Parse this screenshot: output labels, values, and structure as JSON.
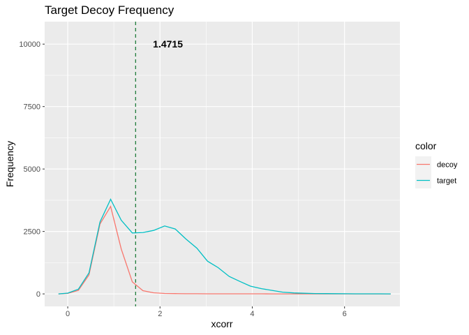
{
  "chart_data": {
    "type": "line",
    "title": "Target Decoy Frequency",
    "xlabel": "xcorr",
    "ylabel": "Frequency",
    "xlim": [
      -0.5,
      7.2
    ],
    "ylim": [
      -500,
      10900
    ],
    "x_ticks": [
      0,
      2,
      4,
      6
    ],
    "x_tick_labels": [
      "0",
      "2",
      "4",
      "6"
    ],
    "y_ticks": [
      0,
      2500,
      5000,
      7500,
      10000
    ],
    "y_tick_labels": [
      "0",
      "2500",
      "5000",
      "7500",
      "10000"
    ],
    "grid": true,
    "legend": {
      "title": "color",
      "position": "right"
    },
    "threshold": {
      "x": 1.4715,
      "label": "1.4715",
      "color": "#1e7b3a",
      "style": "dashed"
    },
    "series": [
      {
        "name": "decoy",
        "color": "#F8766D",
        "x": [
          -0.2,
          0.0,
          0.23,
          0.46,
          0.7,
          0.93,
          1.16,
          1.4,
          1.63,
          1.86,
          2.1,
          2.33,
          2.56,
          2.8,
          3.03,
          3.26,
          3.5,
          3.73,
          3.96,
          4.2,
          4.43,
          4.66,
          4.9,
          5.13,
          5.36,
          5.6,
          5.83,
          6.06,
          6.3,
          6.53,
          6.76,
          7.0
        ],
        "y": [
          0,
          20,
          140,
          760,
          2800,
          3500,
          1800,
          480,
          130,
          45,
          18,
          10,
          7,
          5,
          4,
          3,
          3,
          2,
          2,
          2,
          1,
          1,
          1,
          1,
          1,
          1,
          0,
          0,
          0,
          0,
          0,
          0
        ]
      },
      {
        "name": "target",
        "color": "#00BFC4",
        "x": [
          -0.2,
          0.0,
          0.23,
          0.46,
          0.7,
          0.93,
          1.16,
          1.4,
          1.63,
          1.86,
          2.1,
          2.33,
          2.56,
          2.8,
          3.03,
          3.26,
          3.5,
          3.73,
          3.96,
          4.2,
          4.43,
          4.66,
          4.9,
          5.13,
          5.36,
          5.6,
          5.83,
          6.06,
          6.3,
          6.53,
          6.76,
          7.0
        ],
        "y": [
          0,
          30,
          190,
          840,
          2880,
          3790,
          2950,
          2440,
          2460,
          2540,
          2720,
          2600,
          2200,
          1830,
          1310,
          1050,
          700,
          500,
          310,
          210,
          140,
          70,
          40,
          25,
          15,
          10,
          8,
          5,
          4,
          3,
          2,
          1
        ]
      }
    ]
  }
}
